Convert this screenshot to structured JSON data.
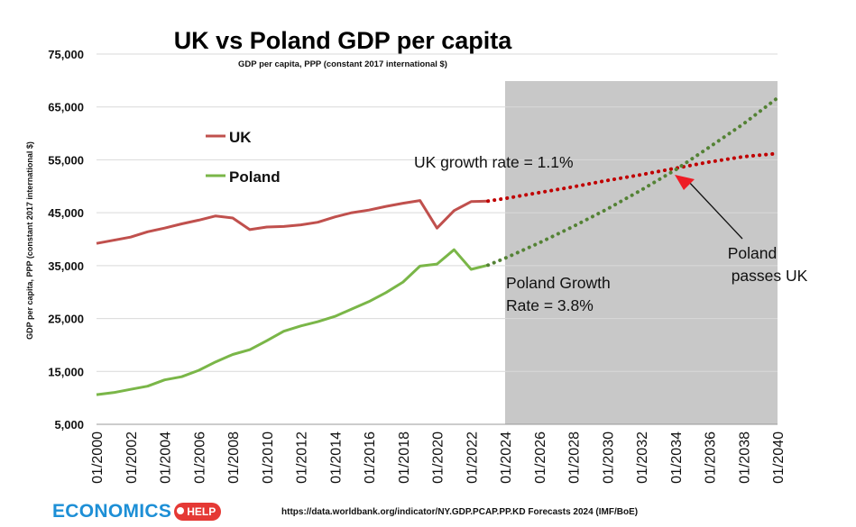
{
  "chart_data": {
    "type": "line",
    "title": "UK vs Poland GDP per capita",
    "subtitle": "GDP per capita, PPP (constant 2017 international $)",
    "ylabel": "GDP per capita, PPP (constant 2017 international $)",
    "xlabel": "",
    "ylim": [
      5000,
      75000
    ],
    "xlim": [
      2000,
      2040
    ],
    "yticks": [
      "5,000",
      "15,000",
      "25,000",
      "35,000",
      "45,000",
      "55,000",
      "65,000",
      "75,000"
    ],
    "ytick_values": [
      5000,
      15000,
      25000,
      35000,
      45000,
      55000,
      65000,
      75000
    ],
    "xticks": [
      "01/2000",
      "01/2002",
      "01/2004",
      "01/2006",
      "01/2008",
      "01/2010",
      "01/2012",
      "01/2014",
      "01/2016",
      "01/2018",
      "01/2020",
      "01/2022",
      "01/2024",
      "01/2026",
      "01/2028",
      "01/2030",
      "01/2032",
      "01/2034",
      "01/2036",
      "01/2038",
      "01/2040"
    ],
    "xtick_values": [
      2000,
      2002,
      2004,
      2006,
      2008,
      2010,
      2012,
      2014,
      2016,
      2018,
      2020,
      2022,
      2024,
      2026,
      2028,
      2030,
      2032,
      2034,
      2036,
      2038,
      2040
    ],
    "grid": true,
    "forecast_region": [
      2024,
      2040
    ],
    "legend_position": "top-left",
    "series": [
      {
        "name": "UK",
        "color": "#c0504d",
        "years": [
          2000,
          2001,
          2002,
          2003,
          2004,
          2005,
          2006,
          2007,
          2008,
          2009,
          2010,
          2011,
          2012,
          2013,
          2014,
          2015,
          2016,
          2017,
          2018,
          2019,
          2020,
          2021,
          2022,
          2023
        ],
        "values": [
          39200,
          39800,
          40400,
          41400,
          42100,
          42900,
          43600,
          44400,
          44000,
          41800,
          42300,
          42400,
          42700,
          43200,
          44200,
          45000,
          45500,
          46200,
          46800,
          47300,
          42100,
          45400,
          47100,
          47200
        ]
      },
      {
        "name": "Poland",
        "color": "#7ab648",
        "years": [
          2000,
          2001,
          2002,
          2003,
          2004,
          2005,
          2006,
          2007,
          2008,
          2009,
          2010,
          2011,
          2012,
          2013,
          2014,
          2015,
          2016,
          2017,
          2018,
          2019,
          2020,
          2021,
          2022,
          2023
        ],
        "values": [
          10600,
          11000,
          11600,
          12200,
          13400,
          14000,
          15200,
          16800,
          18200,
          19100,
          20800,
          22600,
          23600,
          24400,
          25400,
          26800,
          28200,
          29900,
          31900,
          34900,
          35300,
          38000,
          34300,
          35100
        ]
      },
      {
        "name": "UK forecast",
        "color": "#c00000",
        "style": "dotted",
        "years": [
          2023,
          2024,
          2026,
          2028,
          2030,
          2032,
          2034,
          2036,
          2038,
          2040
        ],
        "values": [
          47200,
          47700,
          48800,
          49900,
          51100,
          52200,
          53400,
          54600,
          55600,
          56200
        ]
      },
      {
        "name": "Poland forecast",
        "color": "#548235",
        "style": "dotted",
        "years": [
          2023,
          2024,
          2026,
          2028,
          2030,
          2032,
          2034,
          2036,
          2038,
          2040
        ],
        "values": [
          35100,
          36400,
          39300,
          42400,
          45700,
          49300,
          53100,
          57400,
          61800,
          66700
        ]
      }
    ],
    "annotations": {
      "uk_growth": "UK growth rate = 1.1%",
      "poland_growth_1": "Poland Growth",
      "poland_growth_2": "Rate = 3.8%",
      "passes_1": "Poland",
      "passes_2": "passes UK",
      "crossover_year": 2034,
      "crossover_value": 53200
    }
  },
  "footer": {
    "logo_text": "ECONOMICS",
    "logo_badge": "HELP",
    "source": "https://data.worldbank.org/indicator/NY.GDP.PCAP.PP.KD Forecasts 2024 (IMF/BoE)"
  }
}
